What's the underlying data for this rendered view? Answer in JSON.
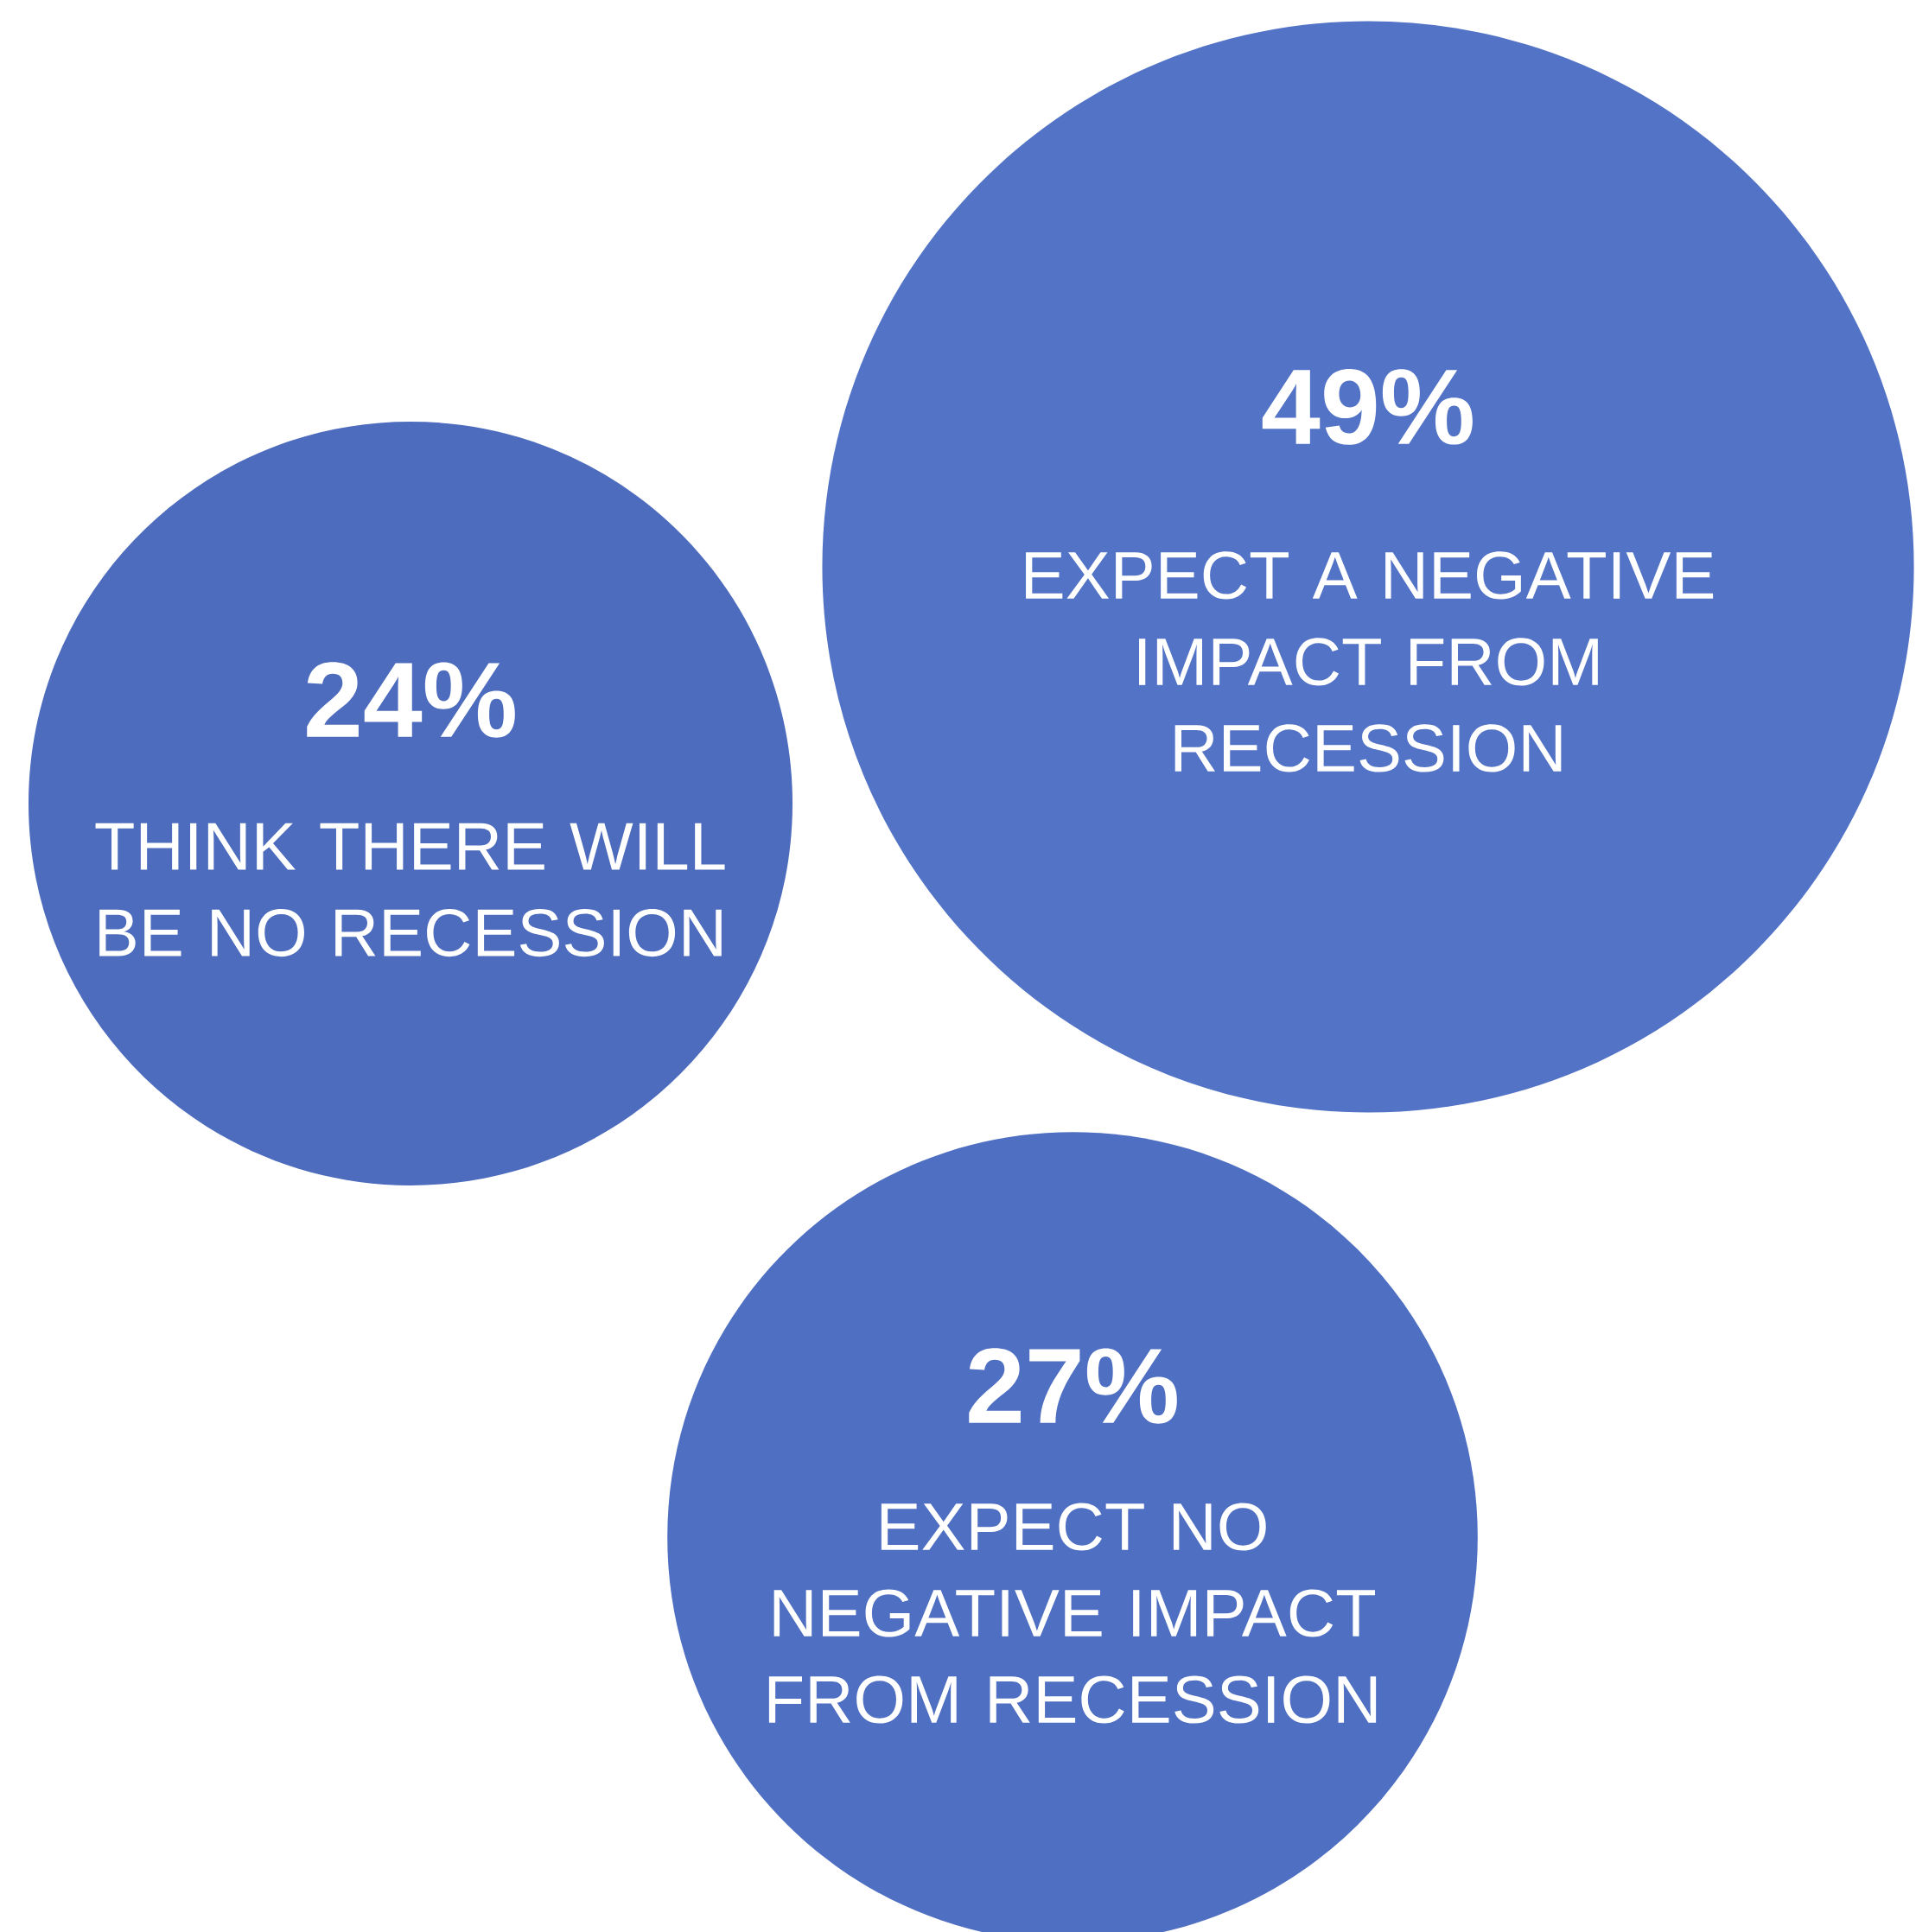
{
  "chart_data": {
    "type": "other",
    "categories": [
      "THINK THERE WILL BE NO RECESSION",
      "EXPECT A NEGATIVE IMPACT FROM RECESSION",
      "EXPECT NO NEGATIVE IMPACT FROM RECESSION"
    ],
    "values": [
      24,
      49,
      27
    ],
    "value_labels": [
      "24%",
      "49%",
      "27%"
    ],
    "colors": [
      "#4d6cbd",
      "#5273c6",
      "#4f6fc2"
    ]
  }
}
